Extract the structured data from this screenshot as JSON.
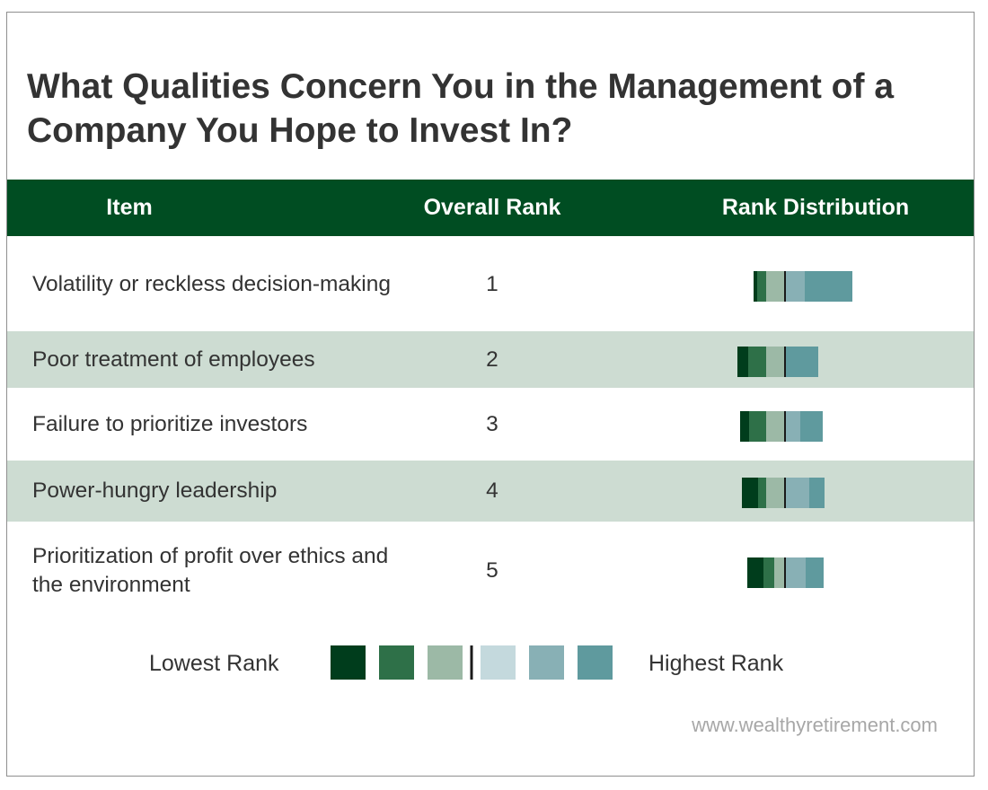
{
  "title": "What Qualities Concern You in the Management of a Company You Hope to Invest In?",
  "colors": {
    "header_bg": "#004d22",
    "row_shade": "#cddcd2",
    "divider": "#1a1a1a",
    "rank_colors": [
      "#003d1c",
      "#2e7048",
      "#9cb9a6",
      "#c4d9dd",
      "#88b0b5",
      "#5f9a9e"
    ]
  },
  "table": {
    "headers": [
      "Item",
      "Overall Rank",
      "Rank Distribution"
    ]
  },
  "chart_data": {
    "type": "bar",
    "orientation": "horizontal",
    "stacked": true,
    "diverging": true,
    "categories": [
      "Volatility or reckless decision-making",
      "Poor treatment of employees",
      "Failure to prioritize investors",
      "Power-hungry leadership",
      "Prioritization of profit over ethics and the environment"
    ],
    "overall_rank": [
      "1",
      "2",
      "3",
      "4",
      "5"
    ],
    "segments": [
      [
        4,
        10,
        21,
        22,
        53
      ],
      [
        12,
        20,
        21,
        0,
        37
      ],
      [
        10,
        19,
        21,
        17,
        25
      ],
      [
        18,
        9,
        21,
        27,
        17
      ],
      [
        18,
        12,
        12,
        23,
        20
      ]
    ],
    "legend": {
      "low_label": "Lowest Rank",
      "high_label": "Highest Rank",
      "swatch_colors": [
        "#003d1c",
        "#2e7048",
        "#9cb9a6",
        "#c4d9dd",
        "#88b0b5",
        "#5f9a9e"
      ]
    }
  },
  "source": "www.wealthyretirement.com"
}
